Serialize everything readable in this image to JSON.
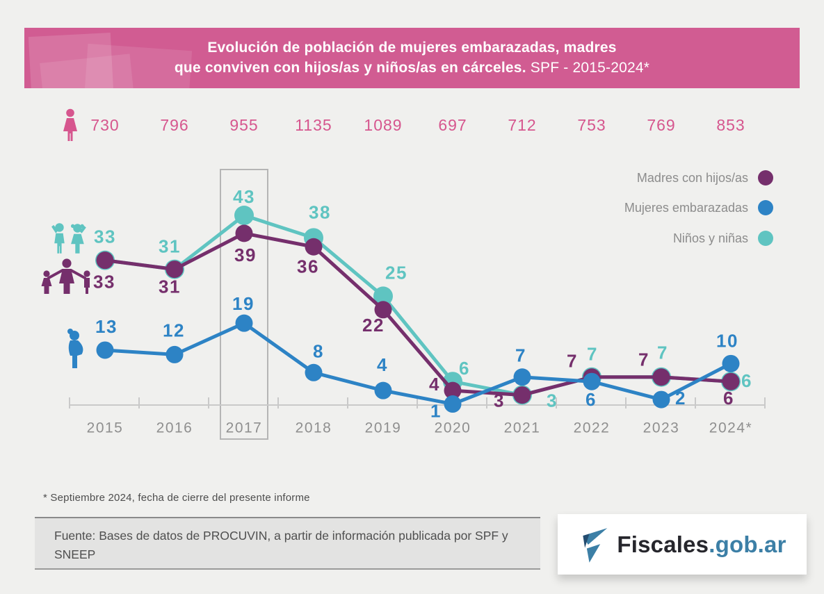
{
  "header": {
    "title_line1": "Evolución de población de mujeres embarazadas, madres",
    "title_line2_bold": "que conviven con hijos/as y niños/as en cárceles.",
    "title_line2_light": "SPF - 2015-2024*",
    "background": "#d15c92"
  },
  "chart_data": {
    "type": "line",
    "title": "Evolución de población de mujeres embarazadas, madres que conviven con hijos/as y niños/as en cárceles. SPF - 2015-2024*",
    "categories": [
      "2015",
      "2016",
      "2017",
      "2018",
      "2019",
      "2020",
      "2021",
      "2022",
      "2023",
      "2024*"
    ],
    "totals": {
      "icon": "woman-icon",
      "color": "#d6568e",
      "values": [
        730,
        796,
        955,
        1135,
        1089,
        697,
        712,
        753,
        769,
        853
      ]
    },
    "series": [
      {
        "name": "Madres con hijos/as",
        "color": "#752f6c",
        "icon": "mother-children-icon",
        "values": [
          33,
          31,
          39,
          36,
          22,
          4,
          3,
          7,
          7,
          6
        ]
      },
      {
        "name": "Mujeres embarazadas",
        "color": "#2d83c5",
        "icon": "pregnant-woman-icon",
        "values": [
          13,
          12,
          19,
          8,
          4,
          1,
          7,
          6,
          2,
          10
        ]
      },
      {
        "name": "Niños y niñas",
        "color": "#5fc4c1",
        "icon": "kids-icon",
        "values": [
          33,
          31,
          43,
          38,
          25,
          6,
          3,
          7,
          7,
          6
        ]
      }
    ],
    "highlighted_category": "2017",
    "ylim": [
      0,
      48
    ],
    "grid": false,
    "legend_position": "top-right",
    "axis_color": "#c9c9c9",
    "tick_label_color": "#8f8f8f"
  },
  "footer": {
    "note": "* Septiembre 2024, fecha de cierre del presente informe",
    "source": "Fuente: Bases de datos de PROCUVIN, a partir de información publicada por SPF y SNEEP"
  },
  "logo": {
    "brand": "Fiscales",
    "domain": ".gob.ar"
  }
}
